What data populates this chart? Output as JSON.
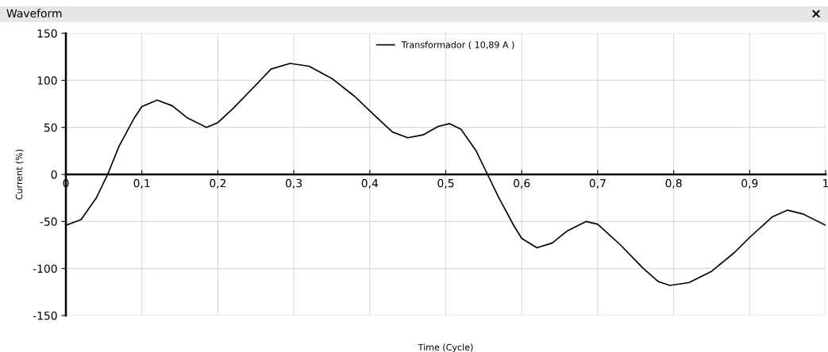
{
  "chart_data": {
    "type": "line",
    "title": "Waveform",
    "xlabel": "Time (Cycle)",
    "ylabel": "Current (%)",
    "annotations": [
      "×"
    ],
    "x": [
      0,
      0.02,
      0.04,
      0.055,
      0.07,
      0.09,
      0.1,
      0.12,
      0.14,
      0.16,
      0.185,
      0.2,
      0.22,
      0.25,
      0.27,
      0.295,
      0.32,
      0.35,
      0.38,
      0.41,
      0.43,
      0.45,
      0.47,
      0.49,
      0.505,
      0.52,
      0.54,
      0.555,
      0.57,
      0.59,
      0.6,
      0.62,
      0.64,
      0.66,
      0.685,
      0.7,
      0.73,
      0.76,
      0.78,
      0.795,
      0.82,
      0.85,
      0.88,
      0.9,
      0.93,
      0.95,
      0.97,
      1.0
    ],
    "series": [
      {
        "name": "Transformador ( 10,89 A )",
        "color": "#000000",
        "values": [
          -54,
          -48,
          -25,
          0,
          30,
          60,
          72,
          79,
          73,
          60,
          50,
          55,
          70,
          95,
          112,
          118,
          115,
          102,
          83,
          60,
          45,
          39,
          42,
          51,
          54,
          48,
          25,
          0,
          -25,
          -55,
          -68,
          -78,
          -73,
          -60,
          -50,
          -53,
          -75,
          -100,
          -114,
          -118,
          -115,
          -103,
          -83,
          -67,
          -45,
          -38,
          -42,
          -54
        ]
      }
    ],
    "xlim": [
      0,
      1
    ],
    "ylim": [
      -150,
      150
    ],
    "xticks": [
      0,
      {
        "value": 0.1,
        "label": "0,1"
      },
      {
        "value": 0.2,
        "label": "0,2"
      },
      {
        "value": 0.3,
        "label": "0,3"
      },
      {
        "value": 0.4,
        "label": "0,4"
      },
      {
        "value": 0.5,
        "label": "0,5"
      },
      {
        "value": 0.6,
        "label": "0,6"
      },
      {
        "value": 0.7,
        "label": "0,7"
      },
      {
        "value": 0.8,
        "label": "0,8"
      },
      {
        "value": 0.9,
        "label": "0,9"
      },
      1
    ],
    "yticks": [
      -150,
      -100,
      -50,
      0,
      50,
      100,
      150
    ],
    "grid": true,
    "legend": "top",
    "line_style": "solid",
    "marker": "none"
  }
}
